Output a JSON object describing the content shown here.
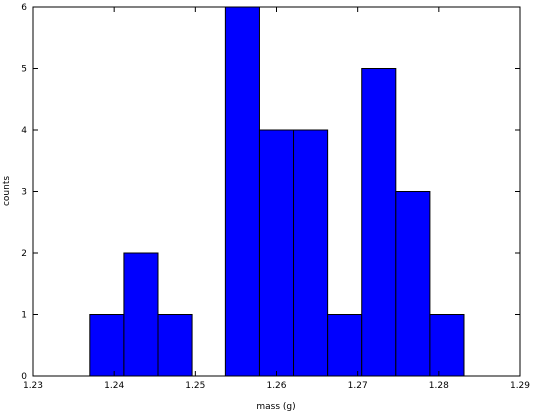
{
  "chart_data": {
    "type": "histogram",
    "bins": [
      1.237,
      1.2412,
      1.2454,
      1.2496,
      1.2537,
      1.2579,
      1.2621,
      1.2663,
      1.2705,
      1.2747,
      1.2789,
      1.2831
    ],
    "values": [
      1,
      2,
      1,
      0,
      6,
      4,
      4,
      1,
      5,
      3,
      1
    ],
    "color": "#0000ff",
    "xlabel": "mass (g)",
    "ylabel": "counts",
    "xlim": [
      1.23,
      1.29
    ],
    "xticks": [
      1.23,
      1.24,
      1.25,
      1.26,
      1.27,
      1.28,
      1.29
    ],
    "ylim": [
      0,
      6
    ],
    "yticks": [
      0,
      1,
      2,
      3,
      4,
      5,
      6
    ]
  }
}
